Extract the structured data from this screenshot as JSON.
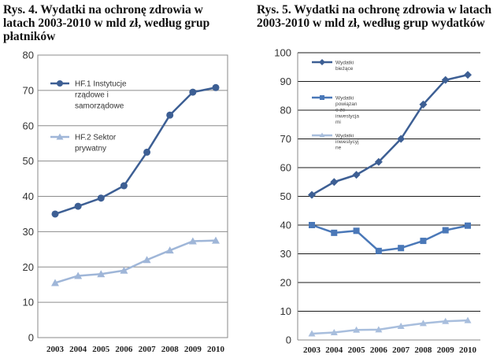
{
  "captions": {
    "left": [
      "Rys. 4. Wydatki na ochronę zdrowia w",
      "latach 2003-2010 w mld zł, według grup",
      "płatników"
    ],
    "right": [
      "Rys. 5. Wydatki na ochronę zdrowia w latach",
      "2003-2010 w mld zł, według grup wydatków"
    ]
  },
  "chart_data": [
    {
      "type": "line",
      "title": "Rys. 4. Wydatki na ochronę zdrowia w latach 2003-2010 w mld zł, według grup płatników",
      "categories": [
        "2003",
        "2004",
        "2005",
        "2006",
        "2007",
        "2008",
        "2009",
        "2010"
      ],
      "ylim": [
        0,
        80
      ],
      "yticks": [
        "0",
        "10",
        "20",
        "30",
        "40",
        "50",
        "60",
        "70",
        "80"
      ],
      "xlabel": "",
      "ylabel": "",
      "legend_position": "top-left",
      "series": [
        {
          "name_lines": [
            "HF.1 Instytucje",
            "rządowe i",
            "samorządowe"
          ],
          "values": [
            35,
            37.2,
            39.5,
            43,
            52.5,
            63,
            69.5,
            70.8
          ],
          "color": "#3d5f94",
          "marker": "circle"
        },
        {
          "name_lines": [
            "HF.2 Sektor",
            "prywatny"
          ],
          "values": [
            15.5,
            17.5,
            18,
            19,
            22,
            24.7,
            27.3,
            27.5
          ],
          "color": "#9fb6d8",
          "marker": "triangle"
        }
      ]
    },
    {
      "type": "line",
      "title": "Rys. 5. Wydatki na ochronę zdrowia w latach 2003-2010 w mld zł, według grup wydatków",
      "categories": [
        "2003",
        "2004",
        "2005",
        "2006",
        "2007",
        "2008",
        "2009",
        "2010"
      ],
      "ylim": [
        0,
        100
      ],
      "yticks": [
        "0",
        "10",
        "20",
        "30",
        "40",
        "50",
        "60",
        "70",
        "80",
        "90",
        "100"
      ],
      "xlabel": "",
      "ylabel": "",
      "legend_position": "top-left",
      "series": [
        {
          "name_lines": [
            "Wydatki",
            "bieżące"
          ],
          "values": [
            50.5,
            55,
            57.5,
            62,
            70,
            82,
            90.5,
            92.3
          ],
          "color": "#3d5f94",
          "marker": "diamond"
        },
        {
          "name_lines": [
            "Wydatki",
            "powiązan",
            "e ze",
            "inwestycja",
            "mi"
          ],
          "values": [
            40,
            37.3,
            38,
            31,
            32,
            34.5,
            38.2,
            39.8
          ],
          "color": "#4a78b8",
          "marker": "square"
        },
        {
          "name_lines": [
            "Wydatki",
            "inwestycyj",
            "ne"
          ],
          "values": [
            2.2,
            2.6,
            3.5,
            3.6,
            4.8,
            5.8,
            6.5,
            6.8
          ],
          "color": "#a8bedd",
          "marker": "triangle"
        }
      ]
    }
  ]
}
